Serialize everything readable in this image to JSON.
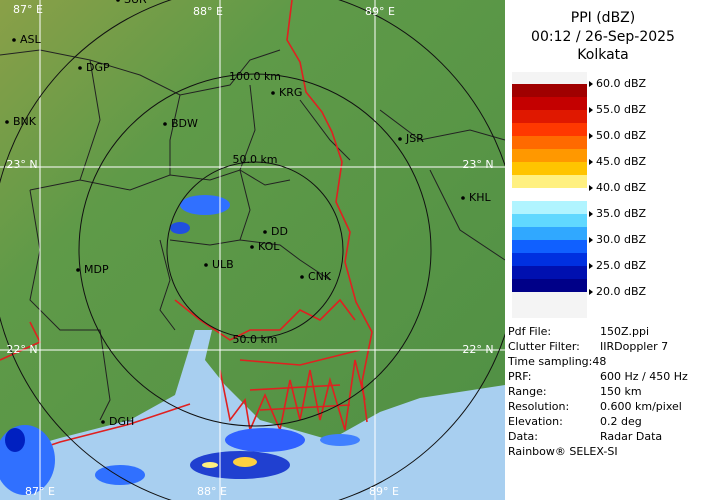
{
  "map": {
    "grid_labels": [
      "87° E",
      "88° E",
      "89° E",
      "23° N",
      "23° N",
      "22° N",
      "22° N",
      "87° E",
      "88° E",
      "89° E"
    ],
    "range_labels": [
      "100.0 km",
      "50.0 km",
      "50.0 km"
    ],
    "places": [
      "SUR",
      "ASL",
      "DGP",
      "BNK",
      "BDW",
      "KRG",
      "JSR",
      "KHL",
      "DD",
      "KOL",
      "ULB",
      "CNK",
      "MDP",
      "DGH"
    ]
  },
  "panel": {
    "title": "PPI (dBZ)",
    "time": "00:12 / 26-Sep-2025",
    "station": "Kolkata",
    "scale": {
      "labels": [
        "60.0 dBZ",
        "55.0 dBZ",
        "50.0 dBZ",
        "45.0 dBZ",
        "40.0 dBZ",
        "35.0 dBZ",
        "30.0 dBZ",
        "25.0 dBZ",
        "20.0 dBZ"
      ],
      "colors": [
        "#a00000",
        "#c40000",
        "#e01800",
        "#ff3800",
        "#ff6a00",
        "#ff9800",
        "#ffc400",
        "#fff080",
        "#ffffff",
        "#b0f4ff",
        "#60d8ff",
        "#30a8ff",
        "#1060ff",
        "#0030e0",
        "#0010b0",
        "#000088"
      ]
    },
    "info": [
      [
        "Pdf File:",
        "150Z.ppi"
      ],
      [
        "Clutter Filter:",
        "IIRDoppler 7"
      ],
      [
        "Time sampling:48",
        null
      ],
      [
        "PRF:",
        "600 Hz / 450 Hz"
      ],
      [
        "Range:",
        "150 km"
      ],
      [
        "Resolution:",
        "0.600 km/pixel"
      ],
      [
        "Elevation:",
        "0.2 deg"
      ],
      [
        "Data:",
        "Radar Data"
      ]
    ],
    "footer": "Rainbow® SELEX-SI"
  }
}
